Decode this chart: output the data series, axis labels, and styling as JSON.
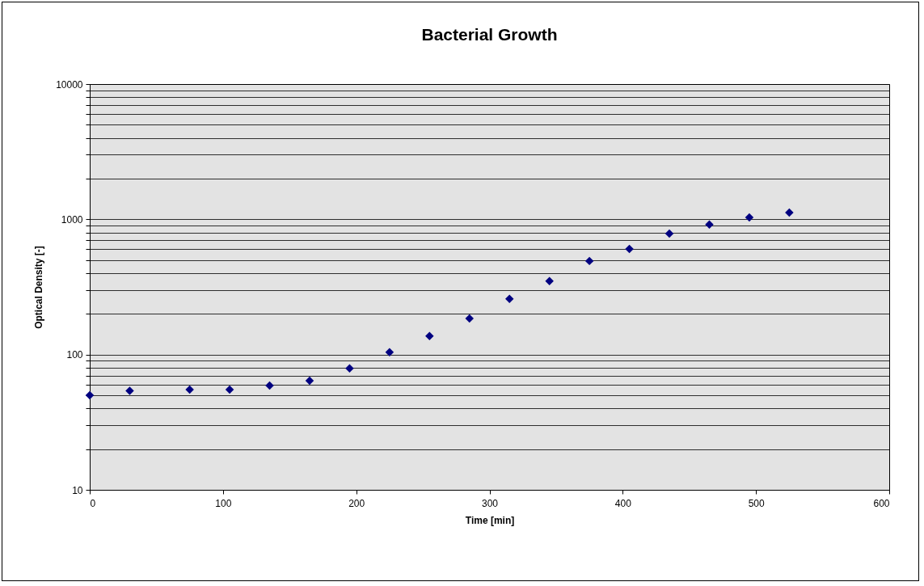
{
  "chart_data": {
    "type": "scatter",
    "title": "Bacterial Growth",
    "xlabel": "Time [min]",
    "ylabel": "Optical Density [-]",
    "x": [
      0,
      30,
      75,
      105,
      135,
      165,
      195,
      225,
      255,
      285,
      315,
      345,
      375,
      405,
      435,
      465,
      495,
      525
    ],
    "series": [
      {
        "color": "#000080",
        "values": [
          50,
          54,
          55,
          55,
          59,
          64,
          79,
          104,
          137,
          185,
          258,
          349,
          492,
          604,
          785,
          914,
          1033,
          1123
        ]
      }
    ],
    "marker": "diamond",
    "log": "y",
    "grid": "y",
    "xlim": [
      0,
      600
    ],
    "xticks": [
      0,
      100,
      200,
      300,
      400,
      500,
      600
    ],
    "ylim": [
      10,
      10000
    ],
    "yticks": [
      10,
      {
        "value": 20,
        "label": null
      },
      {
        "value": 30,
        "label": null
      },
      {
        "value": 40,
        "label": null
      },
      {
        "value": 50,
        "label": null
      },
      {
        "value": 60,
        "label": null
      },
      {
        "value": 70,
        "label": null
      },
      {
        "value": 80,
        "label": null
      },
      {
        "value": 90,
        "label": null
      },
      100,
      {
        "value": 200,
        "label": null
      },
      {
        "value": 300,
        "label": null
      },
      {
        "value": 400,
        "label": null
      },
      {
        "value": 500,
        "label": null
      },
      {
        "value": 600,
        "label": null
      },
      {
        "value": 700,
        "label": null
      },
      {
        "value": 800,
        "label": null
      },
      {
        "value": 900,
        "label": null
      },
      1000,
      {
        "value": 2000,
        "label": null
      },
      {
        "value": 3000,
        "label": null
      },
      {
        "value": 4000,
        "label": null
      },
      {
        "value": 5000,
        "label": null
      },
      {
        "value": 6000,
        "label": null
      },
      {
        "value": 7000,
        "label": null
      },
      {
        "value": 8000,
        "label": null
      },
      {
        "value": 9000,
        "label": null
      },
      10000
    ]
  }
}
